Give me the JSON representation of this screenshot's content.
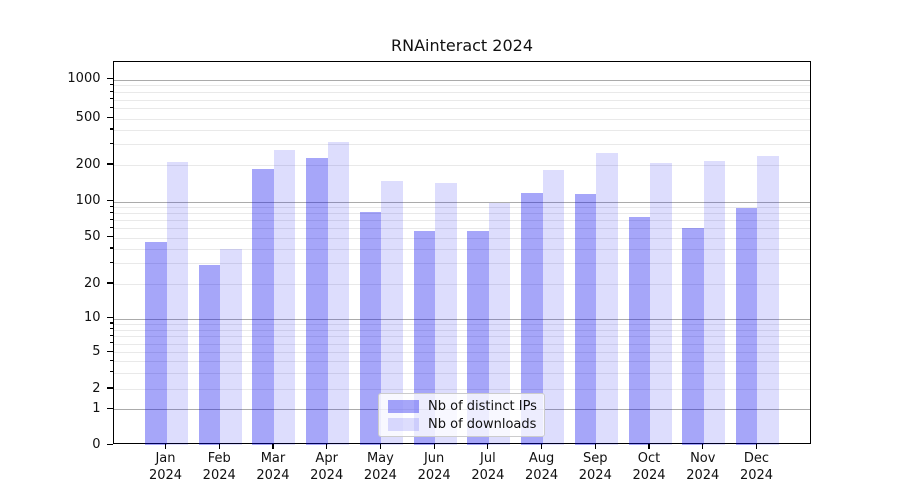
{
  "title": "RNAinteract 2024",
  "chart_data": {
    "type": "bar",
    "title": "RNAinteract 2024",
    "categories": [
      "Jan",
      "Feb",
      "Mar",
      "Apr",
      "May",
      "Jun",
      "Jul",
      "Aug",
      "Sep",
      "Oct",
      "Nov",
      "Dec"
    ],
    "category_year": "2024",
    "xtick_labels": [
      "Jan\n2024",
      "Feb\n2024",
      "Mar\n2024",
      "Apr\n2024",
      "May\n2024",
      "Jun\n2024",
      "Jul\n2024",
      "Aug\n2024",
      "Sep\n2024",
      "Oct\n2024",
      "Nov\n2024",
      "Dec\n2024"
    ],
    "series": [
      {
        "name": "Nb of distinct IPs",
        "color": "rgba(0,0,238,0.35)",
        "apparent_color": "#a6a6f4",
        "values": [
          46,
          29,
          186,
          229,
          82,
          57,
          57,
          118,
          115,
          75,
          60,
          89
        ]
      },
      {
        "name": "Nb of downloads",
        "color": "rgba(0,0,238,0.135)",
        "apparent_color": "#dcdcf9",
        "values": [
          212,
          40,
          269,
          315,
          148,
          142,
          98,
          183,
          252,
          209,
          216,
          240
        ]
      }
    ],
    "yscale": "symlog",
    "yticks": [
      0,
      1,
      2,
      5,
      10,
      20,
      50,
      100,
      200,
      500,
      1000
    ],
    "ytick_labels": [
      "0",
      "1",
      "2",
      "5",
      "10",
      "20",
      "50",
      "100",
      "200",
      "500",
      "1000"
    ],
    "ylim": [
      0,
      1400
    ],
    "grid": true,
    "major_grid_values": [
      1,
      10,
      100,
      1000
    ],
    "legend_position": "lower-center",
    "major_grid_color": "#ababab",
    "minor_grid_color": "#e9e9e9"
  }
}
